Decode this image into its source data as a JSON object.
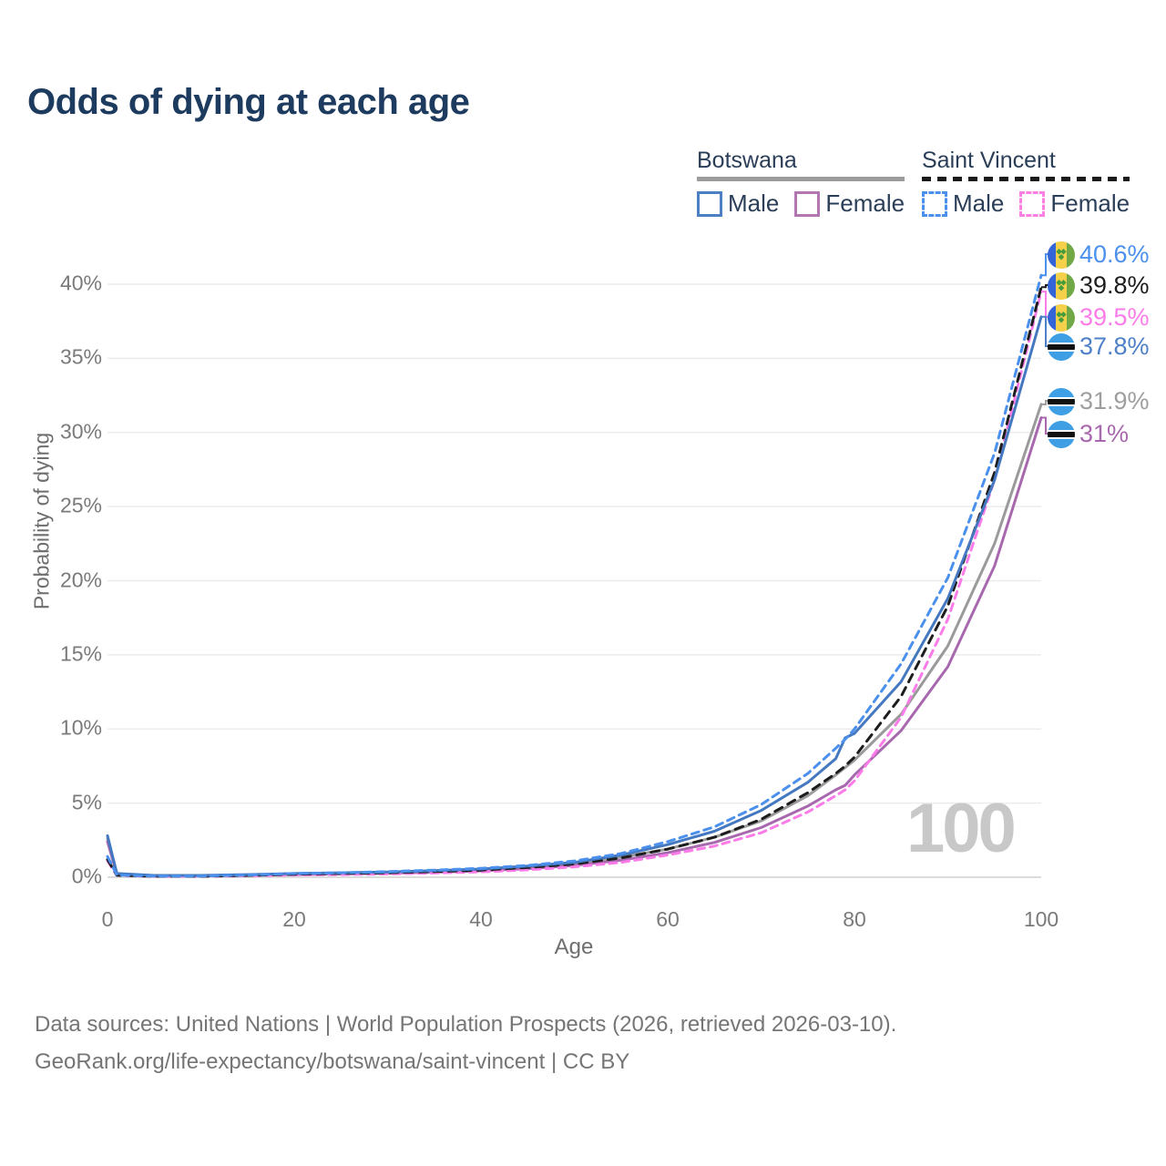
{
  "title": "Odds of dying at each age",
  "legend": {
    "groups": [
      {
        "name": "Botswana",
        "line_style": "solid",
        "underline_color": "#9b9b9b",
        "items": [
          {
            "label": "Male",
            "color": "#4d7fc3"
          },
          {
            "label": "Female",
            "color": "#b277b0"
          }
        ]
      },
      {
        "name": "Saint Vincent",
        "line_style": "dashed",
        "underline_color": "#1a1a1a",
        "items": [
          {
            "label": "Male",
            "color": "#4a90ec"
          },
          {
            "label": "Female",
            "color": "#fc80e4"
          }
        ]
      }
    ]
  },
  "chart_data": {
    "type": "line",
    "title": "Odds of dying at each age",
    "xlabel": "Age",
    "ylabel": "Probability of dying",
    "xlim": [
      0,
      100
    ],
    "ylim": [
      0,
      43
    ],
    "xticks": [
      "0",
      "20",
      "40",
      "60",
      "80",
      "100"
    ],
    "yticks": [
      "0%",
      "5%",
      "10%",
      "15%",
      "20%",
      "25%",
      "30%",
      "35%",
      "40%"
    ],
    "grid": "horizontal",
    "watermark": "100",
    "x": [
      0,
      1,
      5,
      10,
      15,
      20,
      25,
      30,
      35,
      40,
      45,
      50,
      55,
      60,
      65,
      70,
      75,
      78,
      79,
      80,
      85,
      90,
      95,
      100
    ],
    "series": [
      {
        "id": "sv-male",
        "name": "Saint Vincent Male",
        "color": "#4a90ec",
        "dash": "dashed",
        "end_label": "40.6%",
        "end_value": 40.6,
        "label_color": "#4a90ec",
        "flag": "saint-vincent",
        "values": [
          1.4,
          0.15,
          0.08,
          0.08,
          0.15,
          0.25,
          0.3,
          0.38,
          0.48,
          0.6,
          0.8,
          1.1,
          1.6,
          2.4,
          3.4,
          4.9,
          7.0,
          8.7,
          9.3,
          10.0,
          14.4,
          20.2,
          28.6,
          40.6
        ]
      },
      {
        "id": "sv-total",
        "name": "Saint Vincent",
        "color": "#1d1d1d",
        "dash": "dashed",
        "end_label": "39.8%",
        "end_value": 39.8,
        "label_color": "#1d1d1d",
        "flag": "saint-vincent",
        "values": [
          1.2,
          0.13,
          0.07,
          0.07,
          0.12,
          0.2,
          0.25,
          0.3,
          0.38,
          0.48,
          0.65,
          0.9,
          1.3,
          1.9,
          2.7,
          3.9,
          5.7,
          7.0,
          7.5,
          8.1,
          12.2,
          18.3,
          27.3,
          39.8
        ]
      },
      {
        "id": "sv-female",
        "name": "Saint Vincent Female",
        "color": "#fb7ce8",
        "dash": "dashed",
        "end_label": "39.5%",
        "end_value": 39.5,
        "label_color": "#fb7ce8",
        "flag": "saint-vincent",
        "values": [
          1.1,
          0.12,
          0.06,
          0.06,
          0.1,
          0.15,
          0.18,
          0.22,
          0.28,
          0.36,
          0.5,
          0.7,
          1.0,
          1.5,
          2.1,
          3.0,
          4.4,
          5.5,
          5.9,
          6.5,
          10.8,
          17.4,
          26.8,
          39.5
        ]
      },
      {
        "id": "bw-male",
        "name": "Botswana Male",
        "color": "#4478c0",
        "dash": "solid",
        "end_label": "37.8%",
        "end_value": 37.8,
        "label_color": "#4e7fc9",
        "flag": "botswana",
        "values": [
          2.8,
          0.25,
          0.12,
          0.12,
          0.18,
          0.25,
          0.3,
          0.35,
          0.45,
          0.55,
          0.75,
          1.0,
          1.5,
          2.2,
          3.1,
          4.5,
          6.4,
          8.0,
          9.4,
          9.7,
          13.2,
          18.8,
          26.8,
          37.8
        ]
      },
      {
        "id": "bw-total",
        "name": "Botswana",
        "color": "#9a9a9a",
        "dash": "solid",
        "end_label": "31.9%",
        "end_value": 31.9,
        "label_color": "#9e9e9e",
        "flag": "botswana",
        "values": [
          2.6,
          0.22,
          0.1,
          0.1,
          0.15,
          0.22,
          0.27,
          0.32,
          0.4,
          0.5,
          0.68,
          0.92,
          1.35,
          1.9,
          2.7,
          3.8,
          5.5,
          6.9,
          7.4,
          7.9,
          11.0,
          15.6,
          22.5,
          31.9
        ]
      },
      {
        "id": "bw-female",
        "name": "Botswana Female",
        "color": "#a868ae",
        "dash": "solid",
        "end_label": "31%",
        "end_value": 31.0,
        "label_color": "#a868ae",
        "flag": "botswana",
        "values": [
          2.4,
          0.2,
          0.09,
          0.09,
          0.13,
          0.18,
          0.22,
          0.27,
          0.34,
          0.43,
          0.58,
          0.8,
          1.15,
          1.65,
          2.35,
          3.35,
          4.8,
          5.9,
          6.2,
          6.9,
          9.9,
          14.2,
          21.0,
          31.0
        ]
      }
    ]
  },
  "footer": {
    "line1": "Data sources: United Nations | World Population Prospects (2026, retrieved 2026-03-10).",
    "line2": "GeoRank.org/life-expectancy/botswana/saint-vincent | CC BY"
  }
}
